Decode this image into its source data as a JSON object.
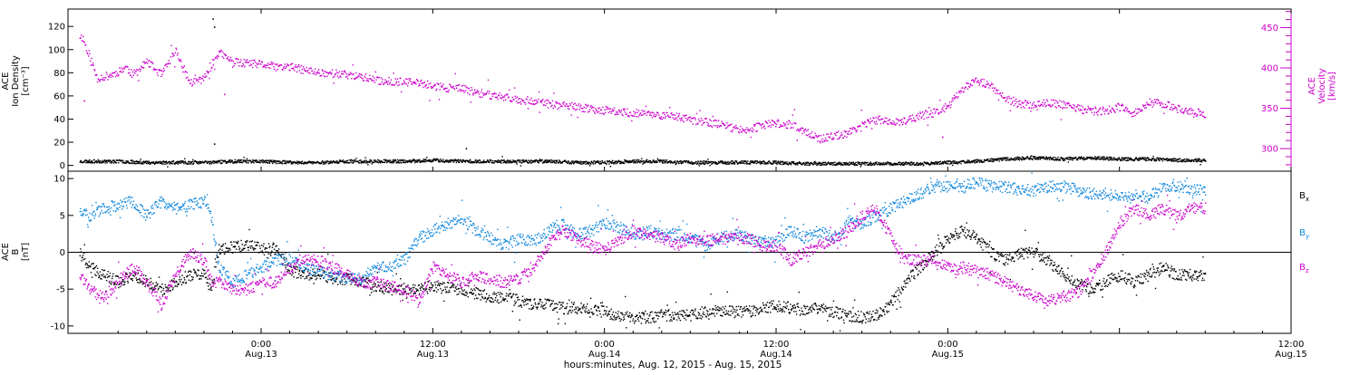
{
  "chart_data": [
    {
      "type": "scatter",
      "panel": "top",
      "left_axis_label": [
        "ACE",
        "Ion Density",
        "[cm⁻³]"
      ],
      "right_axis_label": [
        "ACE",
        "Velocity",
        "[km/s]"
      ],
      "left_ylim": [
        -5,
        135
      ],
      "left_yticks": [
        0,
        20,
        40,
        60,
        80,
        100,
        120
      ],
      "left_ytick_labels": [
        "0",
        "20",
        "40",
        "60",
        "80",
        "100",
        "120"
      ],
      "right_ylim": [
        272,
        473
      ],
      "right_yticks": [
        300,
        350,
        400,
        450
      ],
      "right_ytick_labels": [
        "300",
        "350",
        "400",
        "450"
      ],
      "series": [
        {
          "id": "velocity",
          "color": "#cc00cc",
          "axis": "right",
          "x": [
            -12.7,
            -12.5,
            -12.3,
            -12,
            -11.5,
            -11,
            -10.5,
            -10,
            -9.5,
            -9,
            -8,
            -7,
            -6,
            -5,
            -4,
            -3,
            -2,
            -1,
            0,
            1,
            2,
            3,
            4,
            5,
            6,
            7,
            8,
            9,
            10,
            11,
            12,
            13,
            14,
            15,
            16,
            17,
            18,
            19,
            20,
            21,
            22,
            23,
            24,
            25,
            26,
            27,
            28,
            29,
            30,
            31,
            32,
            33,
            34,
            35,
            36,
            37,
            38,
            39,
            40,
            41,
            42,
            43,
            44,
            45,
            46,
            47,
            48,
            49,
            50,
            51,
            52,
            53,
            54,
            55,
            56,
            57,
            58,
            59,
            60,
            61,
            62,
            63,
            64,
            65,
            66
          ],
          "y": [
            440,
            438,
            428,
            415,
            388,
            390,
            392,
            396,
            402,
            392,
            408,
            392,
            422,
            382,
            388,
            420,
            408,
            406,
            405,
            402,
            402,
            398,
            395,
            394,
            392,
            390,
            385,
            384,
            383,
            382,
            378,
            376,
            375,
            370,
            367,
            365,
            361,
            360,
            356,
            354,
            352,
            350,
            348,
            346,
            345,
            344,
            342,
            340,
            336,
            334,
            331,
            326,
            324,
            329,
            332,
            330,
            322,
            312,
            316,
            320,
            331,
            336,
            334,
            335,
            341,
            345,
            353,
            375,
            385,
            378,
            362,
            356,
            355,
            357,
            355,
            351,
            347,
            348,
            352,
            344,
            358,
            356,
            350,
            346,
            344
          ]
        },
        {
          "id": "density",
          "color": "#000000",
          "axis": "left",
          "x": [
            -12.7,
            -10,
            -8,
            -6,
            -4,
            -2,
            0,
            2,
            4,
            6,
            8,
            10,
            12,
            14,
            16,
            18,
            20,
            22,
            24,
            26,
            28,
            30,
            32,
            34,
            36,
            38,
            40,
            42,
            44,
            46,
            48,
            50,
            52,
            54,
            56,
            58,
            60,
            62,
            64,
            66
          ],
          "y": [
            4,
            4,
            3,
            3,
            3,
            4,
            4,
            3,
            3,
            4,
            4,
            4,
            5,
            4,
            4,
            4,
            4,
            3,
            3,
            4,
            4,
            3,
            3,
            3,
            3,
            2,
            2,
            2,
            2,
            2,
            3,
            4,
            6,
            7,
            6,
            7,
            6,
            6,
            5,
            5
          ]
        }
      ],
      "outliers": [
        {
          "x": -3.4,
          "y": 127,
          "axis": "left"
        },
        {
          "x": -3.3,
          "y": 120,
          "axis": "left"
        },
        {
          "x": -3.3,
          "y": 19,
          "axis": "left"
        },
        {
          "x": 14.3,
          "y": 15,
          "axis": "left"
        },
        {
          "x": -12.4,
          "y": 360,
          "axis": "right"
        },
        {
          "x": -2.6,
          "y": 368,
          "axis": "right"
        },
        {
          "x": 47.6,
          "y": 315,
          "axis": "right"
        }
      ]
    },
    {
      "type": "scatter",
      "panel": "bottom",
      "left_axis_label": [
        "ACE",
        "B",
        "[nT]"
      ],
      "ylim": [
        -11,
        11
      ],
      "yticks": [
        -10,
        -5,
        0,
        5,
        10
      ],
      "ytick_labels": [
        "-10",
        "-5",
        "0",
        "5",
        "10"
      ],
      "zero_line": true,
      "series": [
        {
          "id": "bx",
          "name": "Bx",
          "color": "#000000",
          "x": [
            -12.7,
            -12,
            -11,
            -10,
            -9,
            -8,
            -7,
            -6,
            -5,
            -4,
            -3.5,
            -3,
            -2,
            -1,
            0,
            1,
            2,
            3,
            4,
            5,
            6,
            7,
            8,
            9,
            10,
            11,
            12,
            13,
            14,
            15,
            16,
            17,
            18,
            19,
            20,
            21,
            22,
            23,
            24,
            25,
            26,
            27,
            28,
            29,
            30,
            31,
            32,
            33,
            34,
            35,
            36,
            37,
            38,
            39,
            40,
            41,
            42,
            43,
            44,
            45,
            46,
            47,
            48,
            49,
            50,
            51,
            52,
            53,
            54,
            55,
            56,
            57,
            58,
            59,
            60,
            61,
            62,
            63,
            64,
            65,
            66
          ],
          "y": [
            0,
            -2,
            -3,
            -4,
            -3,
            -4,
            -5,
            -4,
            -3,
            -3,
            -5,
            0.5,
            0.8,
            1,
            0.5,
            0.6,
            -2.5,
            -2.8,
            -3,
            -3.5,
            -3.5,
            -4,
            -4.5,
            -5,
            -4.8,
            -5,
            -4.5,
            -4.8,
            -5,
            -5.5,
            -6,
            -6,
            -6.5,
            -7,
            -7,
            -7.5,
            -7.5,
            -7.8,
            -8,
            -8.5,
            -8.8,
            -8.8,
            -8.5,
            -8.5,
            -8.5,
            -8,
            -7.8,
            -8,
            -8,
            -7.5,
            -7.2,
            -7.5,
            -7.8,
            -7.5,
            -8,
            -8.5,
            -8.8,
            -8.5,
            -7,
            -4,
            -2,
            0,
            2,
            3,
            2,
            0,
            -1,
            0,
            0,
            -1,
            -3,
            -4,
            -5,
            -4,
            -3,
            -4,
            -3,
            -2,
            -3,
            -3,
            -3
          ]
        },
        {
          "id": "by",
          "name": "By",
          "color": "#1188dd",
          "x": [
            -12.7,
            -12,
            -11,
            -10,
            -9,
            -8,
            -7,
            -6,
            -5,
            -4,
            -3.5,
            -3,
            -2,
            -1,
            0,
            1,
            2,
            3,
            4,
            5,
            6,
            7,
            8,
            9,
            10,
            11,
            12,
            13,
            14,
            15,
            16,
            17,
            18,
            19,
            20,
            21,
            22,
            23,
            24,
            25,
            26,
            27,
            28,
            29,
            30,
            31,
            32,
            33,
            34,
            35,
            36,
            37,
            38,
            39,
            40,
            41,
            42,
            43,
            44,
            45,
            46,
            47,
            48,
            49,
            50,
            51,
            52,
            53,
            54,
            55,
            56,
            57,
            58,
            59,
            60,
            61,
            62,
            63,
            64,
            65,
            66
          ],
          "y": [
            6,
            5,
            6,
            6.5,
            7,
            5,
            7,
            6,
            6.5,
            7,
            5,
            -2,
            -4,
            -3,
            -2,
            -1,
            -1,
            -2,
            -2.5,
            -3,
            -3.5,
            -3.5,
            -2,
            -2,
            -1,
            2,
            3,
            4,
            4.5,
            3,
            2,
            1,
            2,
            1.5,
            3,
            4,
            2.5,
            3,
            4,
            3.5,
            2.5,
            3,
            2.5,
            2.5,
            2,
            1,
            2,
            2.5,
            2,
            1.5,
            1.5,
            3,
            2,
            3,
            2,
            4,
            4,
            5,
            6,
            7,
            8,
            9,
            9,
            9,
            9.5,
            9,
            9,
            8.5,
            8.5,
            9,
            9,
            8.5,
            8,
            8,
            7.5,
            8,
            7.5,
            9,
            9,
            8.5,
            8.5
          ]
        },
        {
          "id": "bz",
          "name": "Bz",
          "color": "#cc00cc",
          "x": [
            -12.7,
            -12,
            -11,
            -10,
            -9,
            -8,
            -7,
            -6,
            -5,
            -4,
            -3.5,
            -3,
            -2,
            -1,
            0,
            1,
            2,
            3,
            4,
            5,
            6,
            7,
            8,
            9,
            10,
            11,
            12,
            13,
            14,
            15,
            16,
            17,
            18,
            19,
            20,
            21,
            22,
            23,
            24,
            25,
            26,
            27,
            28,
            29,
            30,
            31,
            32,
            33,
            34,
            35,
            36,
            37,
            38,
            39,
            40,
            41,
            42,
            43,
            44,
            45,
            46,
            47,
            48,
            49,
            50,
            51,
            52,
            53,
            54,
            55,
            56,
            57,
            58,
            59,
            60,
            61,
            62,
            63,
            64,
            65,
            66
          ],
          "y": [
            -3,
            -5,
            -6,
            -4,
            -2,
            -4,
            -7,
            -3,
            0,
            -1,
            -4,
            -4,
            -5,
            -5,
            -4,
            -4,
            -2,
            -1,
            -1,
            -2,
            -3,
            -4,
            -4,
            -4.5,
            -5,
            -6.5,
            -2,
            -3,
            -4,
            -3,
            -3.5,
            -4,
            -3.5,
            -2,
            1,
            3,
            2,
            1,
            0.5,
            1.5,
            3,
            2.5,
            2,
            1,
            2,
            1.5,
            2,
            1.8,
            2,
            1,
            1,
            -1,
            0,
            1,
            2,
            3,
            5,
            6,
            2,
            -1,
            -1,
            -1,
            -2,
            -2,
            -2.5,
            -3,
            -4,
            -5,
            -6,
            -6.5,
            -6,
            -5.5,
            -3,
            0,
            4,
            6,
            5,
            6,
            5,
            6,
            6
          ]
        }
      ],
      "legend": [
        {
          "label": "B",
          "sub": "x",
          "color": "#000000"
        },
        {
          "label": "B",
          "sub": "y",
          "color": "#1188dd"
        },
        {
          "label": "B",
          "sub": "z",
          "color": "#cc00cc"
        }
      ]
    }
  ],
  "x_axis": {
    "range": [
      -13.5,
      72
    ],
    "ticks": [
      0,
      12,
      24,
      36,
      48,
      60,
      72
    ],
    "tick_labels": [
      [
        "0:00",
        "Aug.13"
      ],
      [
        "12:00",
        "Aug.13"
      ],
      [
        "0:00",
        "Aug.14"
      ],
      [
        "12:00",
        "Aug.14"
      ],
      [
        "0:00",
        "Aug.15"
      ],
      [
        "12:00",
        "Aug.15"
      ]
    ],
    "label_ticks": [
      0,
      12,
      24,
      36,
      48,
      72
    ],
    "title": "hours:minutes, Aug. 12, 2015 - Aug. 15, 2015"
  }
}
